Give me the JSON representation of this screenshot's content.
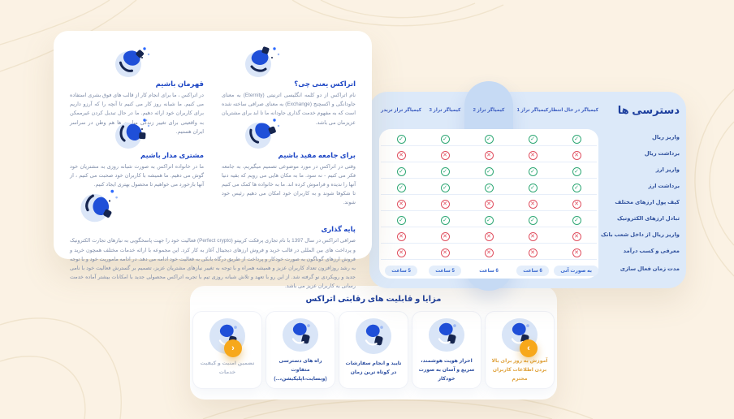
{
  "colors": {
    "background_cream": "#fbf2e4",
    "accent_blue": "#1d46c4",
    "navy": "#16254f",
    "table_bg": "#dce9f9",
    "highlight_column": "#c6daf4",
    "check_green": "#2fa875",
    "cross_red": "#e04f5f",
    "carousel_orange": "#f7a81b"
  },
  "marks": {
    "yes": "✓",
    "no": "✕"
  },
  "about_card": {
    "sections": [
      {
        "icon": "etrax-logo-swirl-illustration",
        "title": "اتراکس یعنی چی؟",
        "body": "نام اتراکس از دو کلمه انگلیسی اترنیتی (Eternity) به معنای جاودانگی و اکسچنج (Exchange) به معنای صرافی ساخته شده است که به مفهوم خدمت گذاری جاودانه ما تا ابد برای مشتریان عزیزمان می باشد."
      },
      {
        "icon": "hero-person-stars-illustration",
        "title": "قهرمان باشیم",
        "body": "در اتراکس ، ما برای انجام کار از قالب های فوق بشری استفاده می کنیم. ما شبانه روز کار می کنیم تا آنچه را که آرزو داریم برای کاربران خود ارائه دهیم. ما در حال تبدیل کردن غیرممکن به واقعیتی برای تغییر زندگی میلیون ها هم وطن در سراسر ایران هستیم."
      },
      {
        "icon": "community-podium-illustration",
        "title": "برای جامعه مفید باشیم",
        "body": "وقتی در اتراکس در مورد موضوعی تصمیم میگیریم، به جامعه فکر می کنیم - نه سود. ما به مکان هایی می رویم که بقیه دنیا آنها را ندیده و فراموش کرده اند. ما به خانواده ها کمک می کنیم تا شکوفا شوند و به کاربران خود امکان می دهیم رئیس خود شوند."
      },
      {
        "icon": "customer-laptop-illustration",
        "title": "مشتری مدار باشیم",
        "body": "ما در خانواده اتراکس به صورت شبانه روزی به مشتریان خود گوش می دهیم. ما همیشه با کاربران خود صحبت می کنیم ، از آنها بازخورد می خواهیم تا محصول بهتری ایجاد کنیم."
      },
      {
        "icon": "founder-celebration-illustration",
        "title": "پایه گذاری",
        "body": "صرافی اتراکس در سال 1397 با نام تجاری پرفکت کریپتو (Perfect crypto) فعالیت خود را جهت پاسخگویی به نیازهای تجارت الکترونیک و پرداخت های بین المللی در قالب خرید و فروش ارزهای دیجیتال آغاز به کار کرد. این مجموعه با ارائه خدمات مختلف همچون خرید و فروش ارزهای گوناگون به صورت خودکار و پرداخت از طریق درگاه بانکی به فعالیت خود ادامه می دهد. در ادامه ماموریت خود و با توجه به رشد روزافزون تعداد کاربران عزیز و همیشه همراه و با توجه به تغییر نیازهای مشتریان عزیز، تصمیم بر گسترش فعالیت خود با نامی جدید و رویکردی نو گرفته شد. از این رو با تعهد و تلاش شبانه روزی تیم با تجربه اتراکس محصولی جدید با امکانات بیشتر آماده خدمت رسانی به کاربران عزیز می باشد."
      }
    ]
  },
  "access_table": {
    "title": "دسترسی ها",
    "columns": [
      "کیمیاگر در حال انتظار",
      "کیمیاگر تراز 1",
      "کیمیاگر تراز 2",
      "کیمیاگر تراز 3",
      "کیمیاگر تراز تریدر"
    ],
    "highlighted_column_index": 2,
    "rows": [
      {
        "label": "واریز ریال",
        "values": [
          true,
          true,
          true,
          true,
          true
        ]
      },
      {
        "label": "برداشت ریال",
        "values": [
          false,
          false,
          false,
          false,
          false
        ]
      },
      {
        "label": "واریز ارز",
        "values": [
          true,
          true,
          true,
          true,
          true
        ]
      },
      {
        "label": "برداشت ارز",
        "values": [
          true,
          true,
          true,
          true,
          true
        ]
      },
      {
        "label": "کیف پول ارزهای مختلف",
        "values": [
          false,
          false,
          false,
          false,
          false
        ]
      },
      {
        "label": "تبادل ارزهای الکترونیک",
        "values": [
          true,
          true,
          true,
          true,
          true
        ]
      },
      {
        "label": "واریز ریال از داخل شعب بانک",
        "values": [
          false,
          false,
          false,
          false,
          false
        ]
      },
      {
        "label": "معرفی و کسب درآمد",
        "values": [
          false,
          false,
          false,
          false,
          false
        ]
      }
    ],
    "footer": {
      "label": "مدت زمان فعال سازی",
      "values": [
        "به صورت آنی",
        "6 ساعت",
        "6 ساعت",
        "5 ساعت",
        "5 ساعت"
      ]
    }
  },
  "features_card": {
    "title": "مزایا و قابلیت های رقابتی اتراکس",
    "items": [
      {
        "icon": "training-person-illustration",
        "label": "آموزش به روز برای بالا بردن اطلاعات کاربران محترم"
      },
      {
        "icon": "identity-verification-illustration",
        "label": "احراز هویت هوشمند، سریع و آسان به صورت خودکار"
      },
      {
        "icon": "order-confirmation-illustration",
        "label": "تایید و انجام سفارشات در کوتاه ترین زمان"
      },
      {
        "icon": "multi-access-illustration",
        "label": "راه های دسترسی متفاوت (وبسایت،اپلیکیشن،...)"
      },
      {
        "icon": "security-shield-illustration",
        "label": "تضمین امنیت و کیفیت خدمات"
      }
    ],
    "nav": {
      "prev": "‹",
      "next": "›"
    }
  }
}
